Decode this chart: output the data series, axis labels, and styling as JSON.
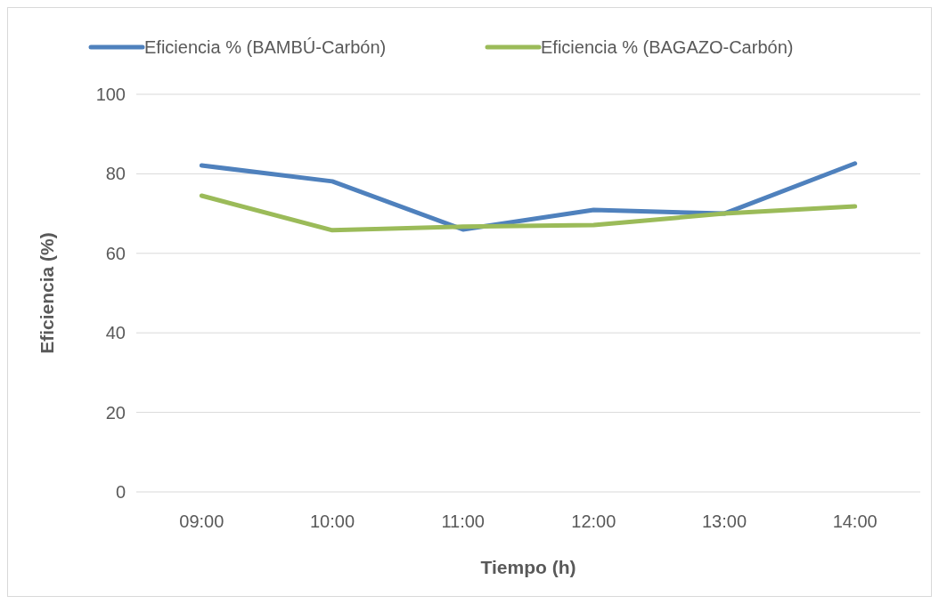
{
  "chart_data": {
    "type": "line",
    "xlabel": "Tiempo (h)",
    "ylabel": "Eficiencia (%)",
    "categories": [
      "09:00",
      "10:00",
      "11:00",
      "12:00",
      "13:00",
      "14:00"
    ],
    "series": [
      {
        "name": "Eficiencia % (BAMBÚ-Carbón)",
        "color": "#4f81bd",
        "values": [
          82.1,
          78.1,
          66,
          70.9,
          70,
          82.6
        ]
      },
      {
        "name": "Eficiencia % (BAGAZO-Carbón)",
        "color": "#9bbb59",
        "values": [
          74.5,
          65.8,
          66.7,
          67.1,
          70,
          71.8
        ]
      }
    ],
    "ylim": [
      0,
      100
    ],
    "yticks": [
      0,
      20,
      40,
      60,
      80,
      100
    ],
    "grid": "y",
    "legend": "top",
    "marker": "none",
    "line_style": "solid"
  }
}
